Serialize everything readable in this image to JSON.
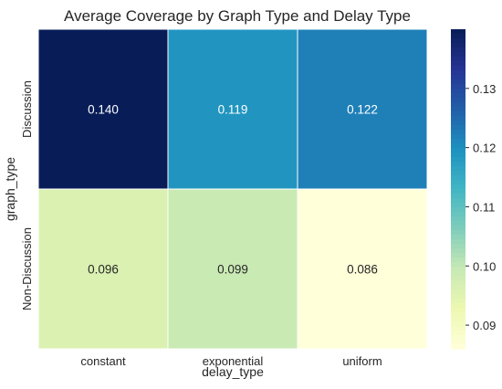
{
  "chart_data": {
    "type": "heatmap",
    "title": "Average Coverage by Graph Type and Delay Type",
    "xlabel": "delay_type",
    "ylabel": "graph_type",
    "x_categories": [
      "constant",
      "exponential",
      "uniform"
    ],
    "y_categories": [
      "Discussion",
      "Non-Discussion"
    ],
    "values": [
      [
        0.14,
        0.119,
        0.122
      ],
      [
        0.096,
        0.099,
        0.086
      ]
    ],
    "cell_labels": [
      [
        "0.140",
        "0.119",
        "0.122"
      ],
      [
        "0.096",
        "0.099",
        "0.086"
      ]
    ],
    "colormap": "YlGnBu",
    "colorbar": {
      "range": [
        0.086,
        0.14
      ],
      "ticks": [
        0.09,
        0.1,
        0.11,
        0.12,
        0.13
      ],
      "tick_labels": [
        "0.09",
        "0.10",
        "0.11",
        "0.12",
        "0.13"
      ]
    },
    "grid": false
  }
}
